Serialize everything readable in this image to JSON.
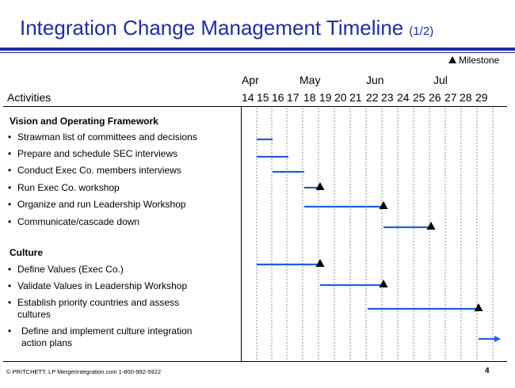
{
  "header": {
    "title": "Integration Change Management Timeline",
    "title_suffix": "(1/2)",
    "legend_label": "Milestone",
    "activities_label": "Activities"
  },
  "timeline": {
    "months": [
      {
        "label": "Apr",
        "week_index": 0
      },
      {
        "label": "May",
        "week_index": 4
      },
      {
        "label": "Jun",
        "week_index": 8
      },
      {
        "label": "Jul",
        "week_index": 12
      }
    ],
    "weeks": [
      "14",
      "15",
      "16",
      "17",
      "18",
      "19",
      "20",
      "21",
      "22",
      "23",
      "24",
      "25",
      "26",
      "27",
      "28",
      "29"
    ]
  },
  "sections": [
    {
      "title": "Vision and Operating Framework",
      "tasks": [
        {
          "label": "Strawman list of committees and decisions",
          "start_week": 15,
          "end_week": 16,
          "milestone": false,
          "arrow": false
        },
        {
          "label": "Prepare and schedule SEC interviews",
          "start_week": 15,
          "end_week": 17,
          "milestone": false,
          "arrow": false
        },
        {
          "label": "Conduct Exec Co. members interviews",
          "start_week": 16,
          "end_week": 18,
          "milestone": false,
          "arrow": false
        },
        {
          "label": "Run Exec Co. workshop",
          "start_week": 18,
          "end_week": 19,
          "milestone": true,
          "arrow": false
        },
        {
          "label": "Organize and run Leadership Workshop",
          "start_week": 18,
          "end_week": 23,
          "milestone": true,
          "arrow": false
        },
        {
          "label": "Communicate/cascade down",
          "start_week": 23,
          "end_week": 26,
          "milestone": true,
          "arrow": false
        }
      ]
    },
    {
      "title": "Culture",
      "tasks": [
        {
          "label": "Define Values (Exec Co.)",
          "start_week": 15,
          "end_week": 19,
          "milestone": true,
          "arrow": false
        },
        {
          "label": "Validate Values in Leadership Workshop",
          "start_week": 19,
          "end_week": 23,
          "milestone": true,
          "arrow": false
        },
        {
          "label": "Establish priority countries and assess cultures",
          "start_week": 22,
          "end_week": 29,
          "milestone": true,
          "arrow": false
        },
        {
          "label": "Define and implement culture integration action plans",
          "start_week": 29,
          "end_week": 30,
          "milestone": false,
          "arrow": true
        }
      ]
    }
  ],
  "footer": {
    "text": "© PRITCHETT, LP   MergerIntegration.com   1-800-992-5922",
    "page": "4"
  },
  "colors": {
    "title": "#1f2ca8",
    "bar": "#1f5fe0",
    "milestone": "#000000"
  }
}
